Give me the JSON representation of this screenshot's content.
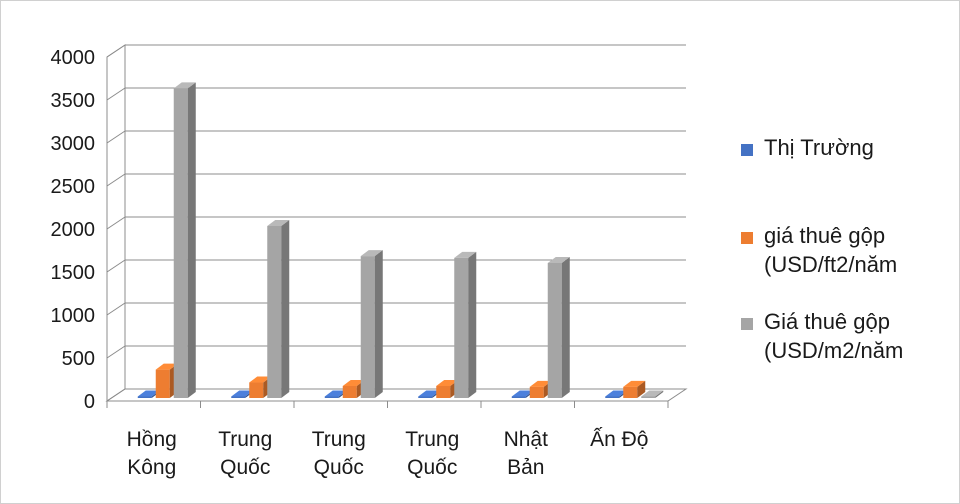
{
  "chart_data": {
    "type": "bar",
    "categories": [
      [
        "Hồng",
        "Kông"
      ],
      [
        "Trung",
        "Quốc"
      ],
      [
        "Trung",
        "Quốc"
      ],
      [
        "Trung",
        "Quốc"
      ],
      [
        "Nhật",
        "Bản"
      ],
      [
        "Ấn Độ"
      ]
    ],
    "series": [
      {
        "name": "Thị Trường",
        "color": "#4472C4",
        "values": [
          0,
          0,
          0,
          0,
          0,
          0
        ]
      },
      {
        "name": [
          "giá thuê gộp",
          "(USD/ft2/năm"
        ],
        "color": "#ED7D31",
        "values": [
          330,
          180,
          140,
          140,
          130,
          130
        ]
      },
      {
        "name": [
          "Giá thuê gộp",
          "(USD/m2/năm"
        ],
        "color": "#A5A5A5",
        "values": [
          3600,
          2000,
          1650,
          1630,
          1570,
          0
        ]
      }
    ],
    "yticks": [
      0,
      500,
      1000,
      1500,
      2000,
      2500,
      3000,
      3500,
      4000
    ],
    "ylim": [
      0,
      4000
    ],
    "grid": true,
    "legend": "right"
  }
}
